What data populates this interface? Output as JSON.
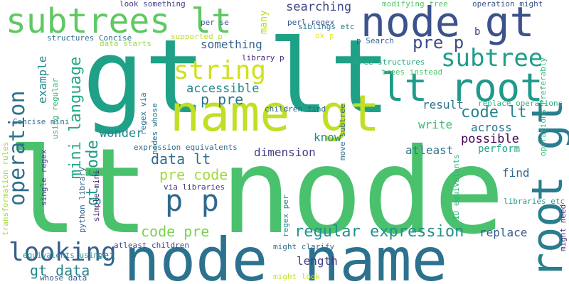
{
  "words": [
    {
      "text": "lt node",
      "color": "#4ac16d"
    },
    {
      "text": "gt lt",
      "color": "#1fa187"
    },
    {
      "text": "node name",
      "color": "#2c728e"
    },
    {
      "text": "name gt",
      "color": "#c0df25"
    },
    {
      "text": "lt root",
      "color": "#1f9a8a"
    },
    {
      "text": "node gt",
      "color": "#3b528b"
    },
    {
      "text": "subtrees lt",
      "color": "#5ec962"
    },
    {
      "text": "root gt",
      "color": "#287d8e"
    },
    {
      "text": "p p",
      "color": "#31688e"
    },
    {
      "text": "looking",
      "color": "#35608d"
    },
    {
      "text": "string",
      "color": "#d0e11c"
    },
    {
      "text": "subtree",
      "color": "#1f9e89"
    },
    {
      "text": "operation",
      "color": "#2e6f8e"
    },
    {
      "text": "p pre",
      "color": "#2a788e"
    },
    {
      "text": "pre p",
      "color": "#3e4a89"
    },
    {
      "text": "code lt",
      "color": "#26828e"
    },
    {
      "text": "regular expression",
      "color": "#21918c"
    },
    {
      "text": "mini language",
      "color": "#22a884"
    },
    {
      "text": "data lt",
      "color": "#2f6c8e"
    },
    {
      "text": "pre code",
      "color": "#a0da39"
    },
    {
      "text": "code pre",
      "color": "#7ad151"
    },
    {
      "text": "gt code",
      "color": "#1e9b8a"
    },
    {
      "text": "gt data",
      "color": "#24868e"
    },
    {
      "text": "accessible",
      "color": "#23888e"
    },
    {
      "text": "something",
      "color": "#33638d"
    },
    {
      "text": "searching",
      "color": "#3f4788"
    },
    {
      "text": "result",
      "color": "#2d708e"
    },
    {
      "text": "write",
      "color": "#3dbc74"
    },
    {
      "text": "wonder",
      "color": "#25858e"
    },
    {
      "text": "dimension",
      "color": "#433e85"
    },
    {
      "text": "know",
      "color": "#24878e"
    },
    {
      "text": "possible",
      "color": "#440154"
    },
    {
      "text": "across",
      "color": "#2a768e"
    },
    {
      "text": "perform",
      "color": "#21a685"
    },
    {
      "text": "atleast",
      "color": "#2c738e"
    },
    {
      "text": "find",
      "color": "#31678e"
    },
    {
      "text": "replace",
      "color": "#375a8c"
    },
    {
      "text": "length",
      "color": "#424186"
    },
    {
      "text": "set",
      "color": "#24868e"
    },
    {
      "text": "example",
      "color": "#23898e"
    },
    {
      "text": "many",
      "color": "#b5de2b"
    },
    {
      "text": "b",
      "color": "#46337e"
    },
    {
      "text": "look something",
      "color": "#433d84"
    },
    {
      "text": "per se",
      "color": "#355e8d"
    },
    {
      "text": "perl regex",
      "color": "#39568c"
    },
    {
      "text": "modifying tree",
      "color": "#56c667"
    },
    {
      "text": "operation might",
      "color": "#3b528b"
    },
    {
      "text": "siblings etc",
      "color": "#297b8e"
    },
    {
      "text": "ok p",
      "color": "#e7e419"
    },
    {
      "text": "supported p",
      "color": "#bddf26"
    },
    {
      "text": "structures Concise",
      "color": "#2d718e"
    },
    {
      "text": "data starts",
      "color": "#9bd93c"
    },
    {
      "text": "p Search",
      "color": "#31688e"
    },
    {
      "text": "library p",
      "color": "#482878"
    },
    {
      "text": "tree structures",
      "color": "#27ad81"
    },
    {
      "text": "trees instead",
      "color": "#4ec36b"
    },
    {
      "text": "replace operations",
      "color": "#29af7f"
    },
    {
      "text": "operations Preferably",
      "color": "#37b878"
    },
    {
      "text": "regex via",
      "color": "#2d708e"
    },
    {
      "text": "children find",
      "color": "#32648e"
    },
    {
      "text": "nodes whose",
      "color": "#2a778e"
    },
    {
      "text": "move subtree",
      "color": "#306a8e"
    },
    {
      "text": "using regular",
      "color": "#35b779"
    },
    {
      "text": "Concise mini",
      "color": "#2b748e"
    },
    {
      "text": "expression equivalents",
      "color": "#2e6e8e"
    },
    {
      "text": "1D equivalents",
      "color": "#2fb47c"
    },
    {
      "text": "transformation rules",
      "color": "#a2da37"
    },
    {
      "text": "single regex",
      "color": "#3e4989"
    },
    {
      "text": "python library",
      "color": "#33638d"
    },
    {
      "text": "via libraries",
      "color": "#46327e"
    },
    {
      "text": "atleast children",
      "color": "#404588"
    },
    {
      "text": "simple mini",
      "color": "#482576"
    },
    {
      "text": "libraries etc",
      "color": "#1f9f88"
    },
    {
      "text": "regex per",
      "color": "#23898e"
    },
    {
      "text": "equivalents using",
      "color": "#1fa088"
    },
    {
      "text": "might clarify",
      "color": "#2d708e"
    },
    {
      "text": "might look",
      "color": "#cae11f"
    },
    {
      "text": "whose data",
      "color": "#38598c"
    },
    {
      "text": "might need",
      "color": "#46307e"
    }
  ]
}
